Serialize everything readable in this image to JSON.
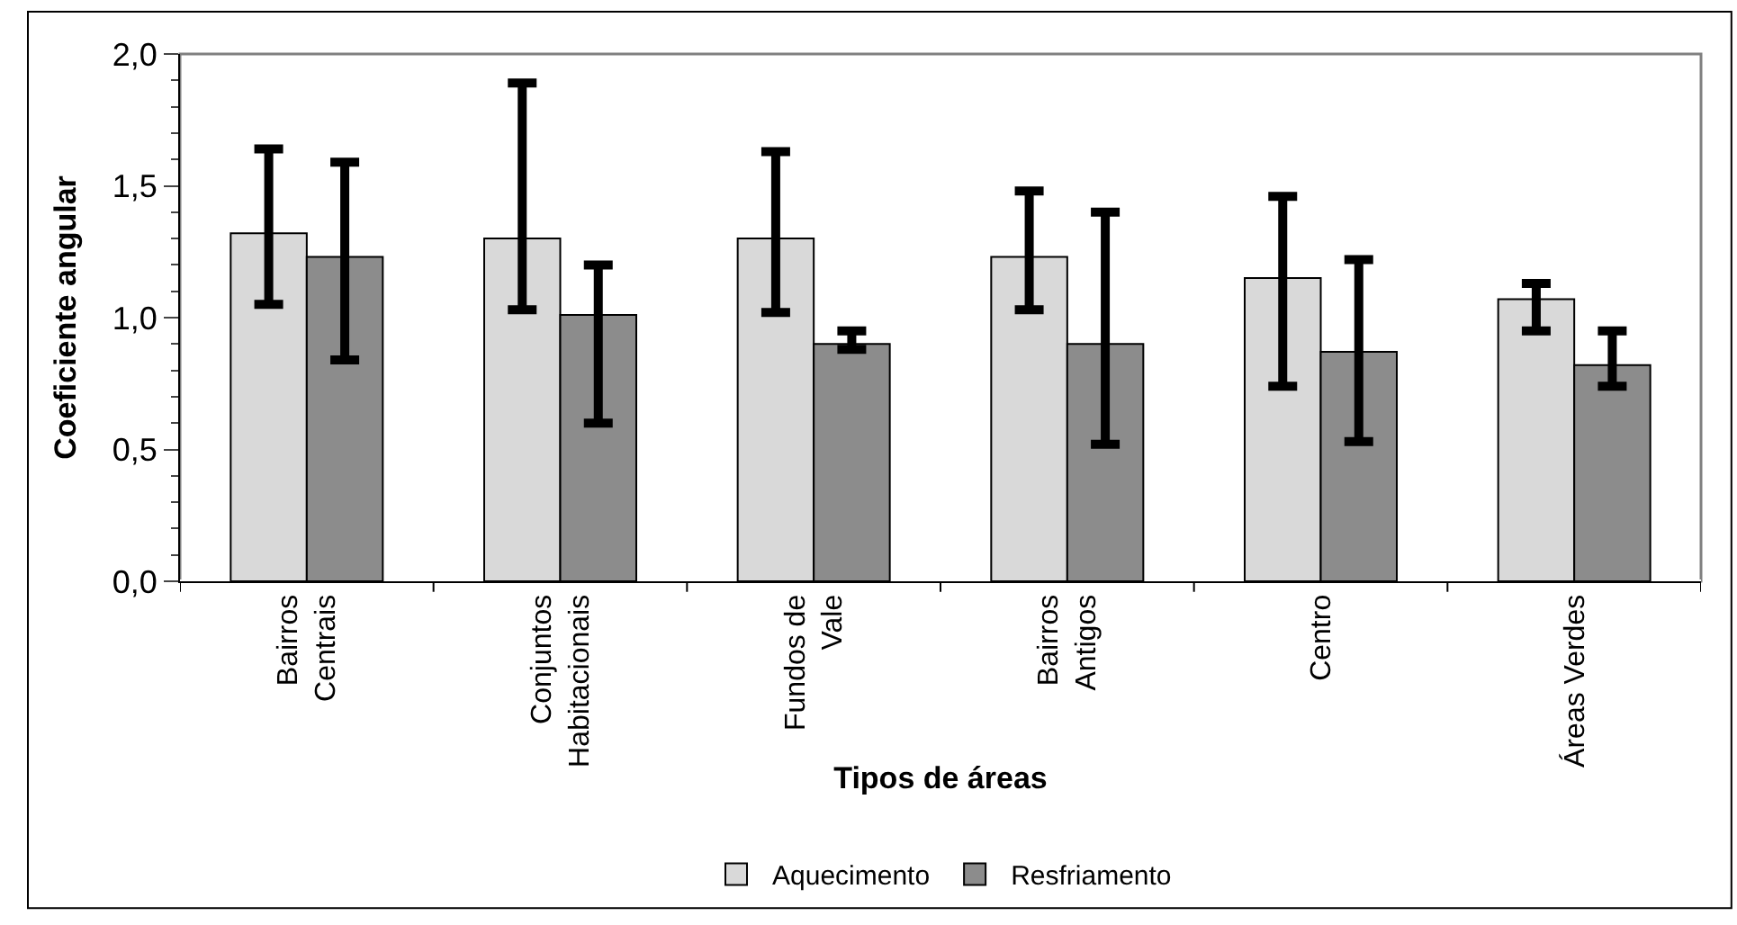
{
  "chart_data": {
    "type": "bar",
    "xlabel": "Tipos de áreas",
    "ylabel": "Coeficiente angular",
    "categories": [
      "Bairros\nCentrais",
      "Conjuntos\nHabitacionais",
      "Fundos de\nVale",
      "Bairros\nAntigos",
      "Centro",
      "Áreas Verdes"
    ],
    "series": [
      {
        "name": "Aquecimento",
        "color": "#d9d9d9",
        "values": [
          1.32,
          1.3,
          1.3,
          1.23,
          1.15,
          1.07
        ],
        "errors": [
          [
            1.05,
            1.64
          ],
          [
            1.03,
            1.89
          ],
          [
            1.02,
            1.63
          ],
          [
            1.03,
            1.48
          ],
          [
            0.74,
            1.46
          ],
          [
            0.95,
            1.13
          ]
        ]
      },
      {
        "name": "Resfriamento",
        "color": "#8c8c8c",
        "values": [
          1.23,
          1.01,
          0.9,
          0.9,
          0.87,
          0.82
        ],
        "errors": [
          [
            0.84,
            1.59
          ],
          [
            0.6,
            1.2
          ],
          [
            0.88,
            0.95
          ],
          [
            0.52,
            1.4
          ],
          [
            0.53,
            1.22
          ],
          [
            0.74,
            0.95
          ]
        ]
      }
    ],
    "ylim": [
      0,
      2
    ],
    "yticks": [
      {
        "value": 0,
        "label": "0,0"
      },
      {
        "value": 0.5,
        "label": "0,5"
      },
      {
        "value": 1,
        "label": "1,0"
      },
      {
        "value": 1.5,
        "label": "1,5"
      },
      {
        "value": 2,
        "label": "2,0"
      }
    ],
    "grid": false,
    "legend": "bottom"
  }
}
